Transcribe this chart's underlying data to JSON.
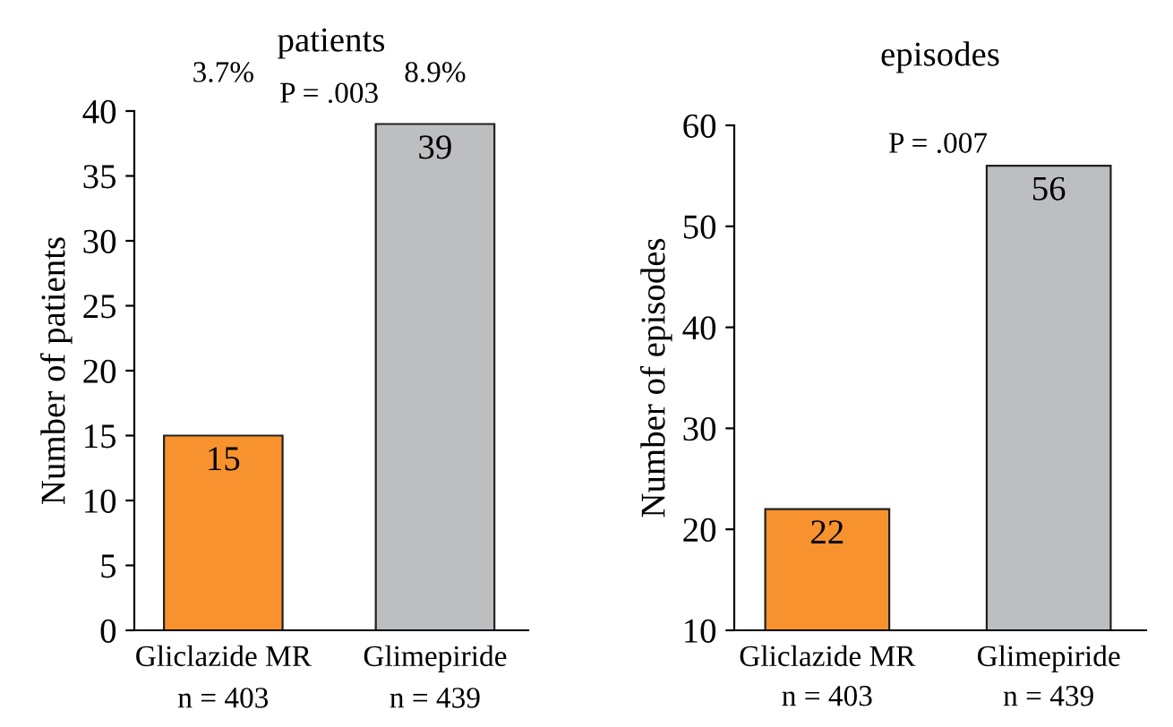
{
  "chart_data": [
    {
      "type": "bar",
      "title": "patients",
      "ylabel": "Number of patients",
      "categories": [
        "Gliclazide MR",
        "Glimepiride"
      ],
      "values": [
        15,
        39
      ],
      "colors": [
        "#f7922e",
        "#bcbec0"
      ],
      "ylim": [
        0,
        40
      ],
      "yticks": [
        0,
        5,
        10,
        15,
        20,
        25,
        30,
        35,
        40
      ],
      "data_labels": true,
      "grid": false,
      "legend": false,
      "annotations": [
        "3.7%",
        "P = .003",
        "8.9%",
        "n = 403",
        "n = 439"
      ]
    },
    {
      "type": "bar",
      "title": "episodes",
      "ylabel": "Number of episodes",
      "categories": [
        "Gliclazide MR",
        "Glimepiride"
      ],
      "values": [
        22,
        56
      ],
      "colors": [
        "#f7922e",
        "#bcbec0"
      ],
      "ylim": [
        10,
        60
      ],
      "yticks": [
        10,
        20,
        30,
        40,
        50,
        60
      ],
      "data_labels": true,
      "grid": false,
      "legend": false,
      "annotations": [
        "P = .007",
        "n = 403",
        "n = 439"
      ]
    }
  ]
}
